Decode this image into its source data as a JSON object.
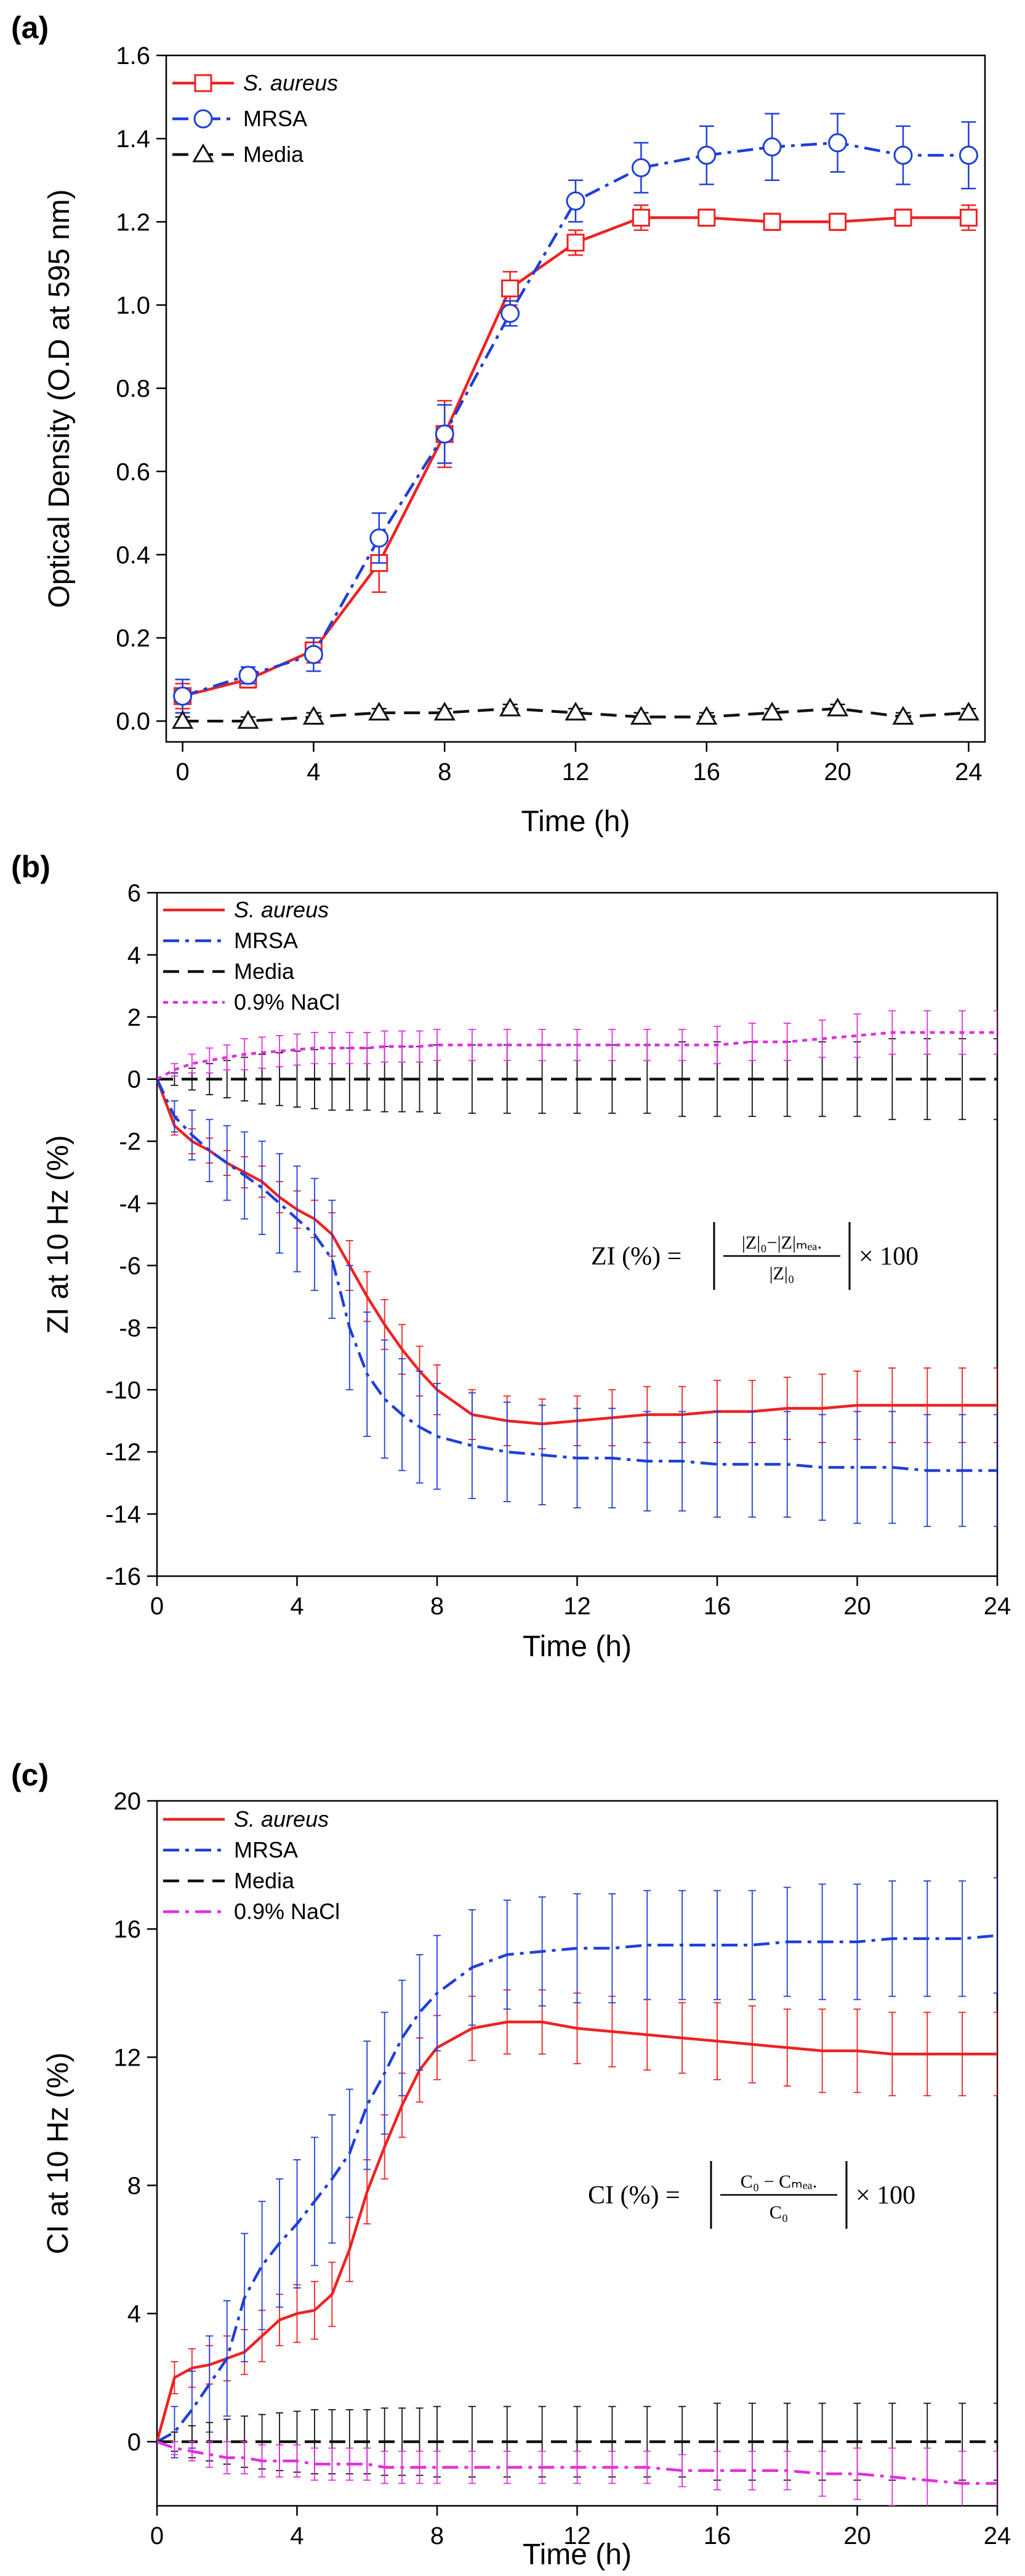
{
  "chart_data": [
    {
      "panel": "(a)",
      "type": "line",
      "xlabel": "Time (h)",
      "ylabel": "Optical Density (O.D at 595 nm)",
      "xlim": [
        -0.5,
        24.5
      ],
      "ylim": [
        -0.05,
        1.6
      ],
      "xticks": [
        0,
        4,
        8,
        12,
        16,
        20,
        24
      ],
      "yticks": [
        0.0,
        0.2,
        0.4,
        0.6,
        0.8,
        1.0,
        1.2,
        1.4,
        1.6
      ],
      "ytick_labels": [
        "0.0",
        "0.2",
        "0.4",
        "0.6",
        "0.8",
        "1.0",
        "1.2",
        "1.4",
        "1.6"
      ],
      "legend_position": "top-left",
      "x": [
        0,
        2,
        4,
        6,
        8,
        10,
        12,
        14,
        16,
        18,
        20,
        22,
        24
      ],
      "series": [
        {
          "name": "S. aureus",
          "color": "#ee2222",
          "dash": "solid",
          "marker": "square",
          "italic": true,
          "values": [
            0.06,
            0.1,
            0.17,
            0.38,
            0.69,
            1.04,
            1.15,
            1.21,
            1.21,
            1.2,
            1.2,
            1.21,
            1.21
          ],
          "errors": [
            0.03,
            0.02,
            0.03,
            0.07,
            0.08,
            0.04,
            0.03,
            0.03,
            0.02,
            0.02,
            0.02,
            0.02,
            0.03
          ]
        },
        {
          "name": "MRSA",
          "color": "#1f3fd8",
          "dash": "dashdot",
          "marker": "circle",
          "italic": false,
          "values": [
            0.06,
            0.11,
            0.16,
            0.44,
            0.69,
            0.98,
            1.25,
            1.33,
            1.36,
            1.38,
            1.39,
            1.36,
            1.36
          ],
          "errors": [
            0.04,
            0.02,
            0.04,
            0.06,
            0.07,
            0.03,
            0.05,
            0.06,
            0.07,
            0.08,
            0.07,
            0.07,
            0.08
          ]
        },
        {
          "name": "Media",
          "color": "#111111",
          "dash": "dashed",
          "marker": "triangle",
          "italic": false,
          "values": [
            0.0,
            0.0,
            0.01,
            0.02,
            0.02,
            0.03,
            0.02,
            0.01,
            0.01,
            0.02,
            0.03,
            0.01,
            0.02
          ],
          "errors": [
            0.01,
            0.01,
            0.01,
            0.01,
            0.01,
            0.01,
            0.01,
            0.01,
            0.01,
            0.01,
            0.01,
            0.01,
            0.01
          ]
        }
      ]
    },
    {
      "panel": "(b)",
      "type": "line",
      "xlabel": "Time (h)",
      "ylabel": "ZI at 10 Hz (%)",
      "xlim": [
        0,
        24
      ],
      "ylim": [
        -16,
        6
      ],
      "xticks": [
        0,
        4,
        8,
        12,
        16,
        20,
        24
      ],
      "yticks": [
        -16,
        -14,
        -12,
        -10,
        -8,
        -6,
        -4,
        -2,
        0,
        2,
        4,
        6
      ],
      "legend_position": "top-left",
      "annotation": {
        "lhs": "ZI (%) = ",
        "num": "|Z|₀−|Z|ₘₑₐ.",
        "den": "|Z|₀",
        "rhs": "× 100"
      },
      "x": [
        0,
        0.5,
        1,
        1.5,
        2,
        2.5,
        3,
        3.5,
        4,
        4.5,
        5,
        5.5,
        6,
        6.5,
        7,
        7.5,
        8,
        9,
        10,
        11,
        12,
        13,
        14,
        15,
        16,
        17,
        18,
        19,
        20,
        21,
        22,
        23,
        24
      ],
      "series": [
        {
          "name": "S. aureus",
          "color": "#ee2222",
          "dash": "solid",
          "italic": true,
          "values": [
            0,
            -1.5,
            -2.0,
            -2.3,
            -2.7,
            -3.0,
            -3.3,
            -3.8,
            -4.2,
            -4.5,
            -5.0,
            -6.0,
            -7.0,
            -7.9,
            -8.7,
            -9.4,
            -10.0,
            -10.8,
            -11.0,
            -11.1,
            -11.0,
            -10.9,
            -10.8,
            -10.8,
            -10.7,
            -10.7,
            -10.6,
            -10.6,
            -10.5,
            -10.5,
            -10.5,
            -10.5,
            -10.5
          ],
          "errors": [
            0,
            0.3,
            0.4,
            0.4,
            0.4,
            0.5,
            0.5,
            0.5,
            0.6,
            0.6,
            0.7,
            0.8,
            0.8,
            0.8,
            0.8,
            0.8,
            0.8,
            0.8,
            0.8,
            0.8,
            0.8,
            0.9,
            0.9,
            0.9,
            1.0,
            1.0,
            1.0,
            1.1,
            1.1,
            1.2,
            1.2,
            1.2,
            1.2
          ]
        },
        {
          "name": "MRSA",
          "color": "#1f3fd8",
          "dash": "dashdot",
          "italic": false,
          "values": [
            0,
            -1.2,
            -1.8,
            -2.3,
            -2.7,
            -3.1,
            -3.5,
            -4.0,
            -4.5,
            -5.0,
            -5.8,
            -8.0,
            -9.5,
            -10.3,
            -10.8,
            -11.2,
            -11.5,
            -11.8,
            -12.0,
            -12.1,
            -12.2,
            -12.2,
            -12.3,
            -12.3,
            -12.4,
            -12.4,
            -12.4,
            -12.5,
            -12.5,
            -12.5,
            -12.6,
            -12.6,
            -12.6
          ],
          "errors": [
            0,
            0.5,
            0.8,
            1.0,
            1.2,
            1.4,
            1.5,
            1.6,
            1.7,
            1.8,
            1.9,
            2.0,
            2.0,
            1.9,
            1.8,
            1.8,
            1.7,
            1.7,
            1.6,
            1.6,
            1.6,
            1.6,
            1.6,
            1.6,
            1.7,
            1.7,
            1.7,
            1.7,
            1.8,
            1.8,
            1.8,
            1.8,
            1.8
          ]
        },
        {
          "name": "Media",
          "color": "#111111",
          "dash": "dashed",
          "italic": false,
          "values": [
            0,
            0,
            0,
            0,
            0,
            0,
            0,
            0,
            0,
            0,
            0,
            0,
            0,
            0,
            0,
            0,
            0,
            0,
            0,
            0,
            0,
            0,
            0,
            0,
            0,
            0,
            0,
            0,
            0,
            0,
            0,
            0,
            0
          ],
          "errors": [
            0,
            0.2,
            0.35,
            0.5,
            0.6,
            0.7,
            0.8,
            0.85,
            0.9,
            0.95,
            1.0,
            1.0,
            1.0,
            1.05,
            1.05,
            1.05,
            1.1,
            1.1,
            1.1,
            1.1,
            1.1,
            1.1,
            1.1,
            1.2,
            1.2,
            1.2,
            1.2,
            1.2,
            1.2,
            1.3,
            1.3,
            1.3,
            1.3
          ]
        },
        {
          "name": "0.9% NaCl",
          "color": "#e030e0",
          "dash": "dotted",
          "italic": false,
          "values": [
            0,
            0.3,
            0.5,
            0.6,
            0.7,
            0.8,
            0.85,
            0.9,
            0.95,
            1.0,
            1.0,
            1.0,
            1.0,
            1.05,
            1.05,
            1.05,
            1.1,
            1.1,
            1.1,
            1.1,
            1.1,
            1.1,
            1.1,
            1.1,
            1.1,
            1.2,
            1.2,
            1.3,
            1.4,
            1.5,
            1.5,
            1.5,
            1.5
          ],
          "errors": [
            0,
            0.2,
            0.3,
            0.4,
            0.4,
            0.5,
            0.5,
            0.5,
            0.5,
            0.5,
            0.5,
            0.5,
            0.5,
            0.5,
            0.5,
            0.5,
            0.5,
            0.5,
            0.5,
            0.5,
            0.5,
            0.5,
            0.5,
            0.5,
            0.6,
            0.6,
            0.6,
            0.6,
            0.7,
            0.7,
            0.7,
            0.7,
            0.7
          ]
        }
      ]
    },
    {
      "panel": "(c)",
      "type": "line",
      "xlabel": "Time (h)",
      "ylabel": "CI at 10 Hz (%)",
      "xlim": [
        0,
        24
      ],
      "ylim": [
        -2,
        20
      ],
      "xticks": [
        0,
        4,
        8,
        12,
        16,
        20,
        24
      ],
      "yticks": [
        0,
        4,
        8,
        12,
        16,
        20
      ],
      "legend_position": "top-left",
      "annotation": {
        "lhs": "CI (%) = ",
        "num": "C₀ − Cₘₑₐ.",
        "den": "C₀",
        "rhs": "× 100"
      },
      "x": [
        0,
        0.5,
        1,
        1.5,
        2,
        2.5,
        3,
        3.5,
        4,
        4.5,
        5,
        5.5,
        6,
        6.5,
        7,
        7.5,
        8,
        9,
        10,
        11,
        12,
        13,
        14,
        15,
        16,
        17,
        18,
        19,
        20,
        21,
        22,
        23,
        24
      ],
      "series": [
        {
          "name": "S. aureus",
          "color": "#ee2222",
          "dash": "solid",
          "italic": true,
          "values": [
            0,
            2.0,
            2.3,
            2.4,
            2.6,
            2.8,
            3.3,
            3.8,
            4.0,
            4.1,
            4.6,
            6.0,
            7.8,
            9.2,
            10.5,
            11.6,
            12.3,
            12.9,
            13.1,
            13.1,
            12.9,
            12.8,
            12.7,
            12.6,
            12.5,
            12.4,
            12.3,
            12.2,
            12.2,
            12.1,
            12.1,
            12.1,
            12.1
          ],
          "errors": [
            0,
            0.5,
            0.6,
            0.6,
            0.7,
            0.7,
            0.8,
            0.8,
            0.9,
            0.9,
            1.0,
            1.0,
            1.0,
            1.0,
            1.0,
            1.0,
            1.0,
            1.0,
            1.0,
            1.0,
            1.1,
            1.1,
            1.1,
            1.1,
            1.2,
            1.2,
            1.2,
            1.3,
            1.3,
            1.3,
            1.3,
            1.3,
            1.3
          ]
        },
        {
          "name": "MRSA",
          "color": "#1f3fd8",
          "dash": "dashdot",
          "italic": false,
          "values": [
            0,
            0.3,
            1.0,
            1.8,
            2.6,
            4.5,
            5.5,
            6.2,
            6.8,
            7.5,
            8.2,
            9.0,
            10.5,
            11.5,
            12.6,
            13.4,
            14.0,
            14.8,
            15.2,
            15.3,
            15.4,
            15.4,
            15.5,
            15.5,
            15.5,
            15.5,
            15.6,
            15.6,
            15.6,
            15.7,
            15.7,
            15.7,
            15.8
          ],
          "errors": [
            0,
            0.8,
            1.2,
            1.5,
            1.8,
            2.0,
            2.0,
            2.0,
            2.0,
            2.0,
            2.0,
            2.0,
            2.0,
            1.9,
            1.8,
            1.8,
            1.8,
            1.8,
            1.7,
            1.7,
            1.7,
            1.7,
            1.7,
            1.7,
            1.7,
            1.7,
            1.7,
            1.8,
            1.8,
            1.8,
            1.8,
            1.8,
            1.8
          ]
        },
        {
          "name": "Media",
          "color": "#111111",
          "dash": "dashed",
          "italic": false,
          "values": [
            0,
            0,
            0,
            0,
            0,
            0,
            0,
            0,
            0,
            0,
            0,
            0,
            0,
            0,
            0,
            0,
            0,
            0,
            0,
            0,
            0,
            0,
            0,
            0,
            0,
            0,
            0,
            0,
            0,
            0,
            0,
            0,
            0
          ],
          "errors": [
            0,
            0.3,
            0.5,
            0.6,
            0.7,
            0.8,
            0.85,
            0.9,
            0.95,
            1.0,
            1.0,
            1.0,
            1.0,
            1.05,
            1.05,
            1.05,
            1.1,
            1.1,
            1.1,
            1.1,
            1.1,
            1.1,
            1.1,
            1.1,
            1.2,
            1.2,
            1.2,
            1.2,
            1.2,
            1.2,
            1.2,
            1.2,
            1.2
          ]
        },
        {
          "name": "0.9% NaCl",
          "color": "#e030e0",
          "dash": "dashdot",
          "italic": false,
          "values": [
            0,
            -0.2,
            -0.3,
            -0.4,
            -0.5,
            -0.5,
            -0.6,
            -0.6,
            -0.6,
            -0.7,
            -0.7,
            -0.7,
            -0.7,
            -0.8,
            -0.8,
            -0.8,
            -0.8,
            -0.8,
            -0.8,
            -0.8,
            -0.8,
            -0.8,
            -0.8,
            -0.9,
            -0.9,
            -0.9,
            -0.9,
            -1.0,
            -1.0,
            -1.1,
            -1.2,
            -1.3,
            -1.3
          ],
          "errors": [
            0,
            0.2,
            0.3,
            0.4,
            0.5,
            0.5,
            0.5,
            0.5,
            0.5,
            0.5,
            0.5,
            0.5,
            0.5,
            0.5,
            0.5,
            0.5,
            0.5,
            0.5,
            0.5,
            0.5,
            0.5,
            0.5,
            0.5,
            0.5,
            0.6,
            0.6,
            0.6,
            0.7,
            0.8,
            0.9,
            1.0,
            1.0,
            1.0
          ]
        }
      ]
    }
  ]
}
